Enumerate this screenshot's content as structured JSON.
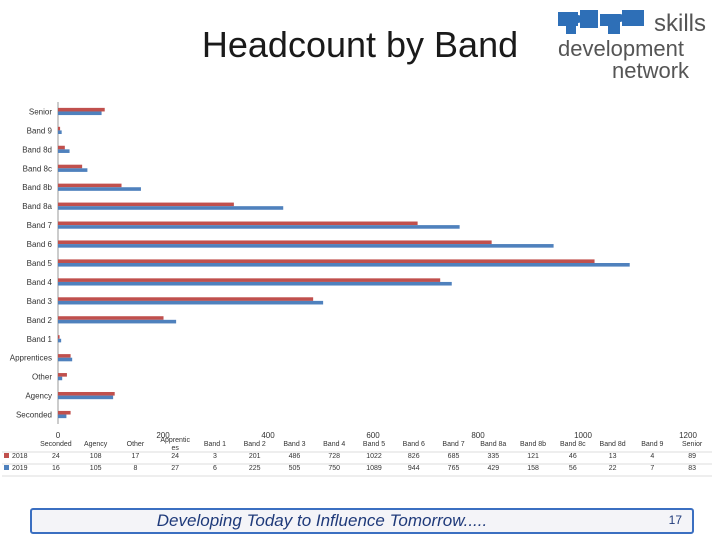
{
  "slide": {
    "title": "Headcount by Band",
    "footer_text": "Developing Today to Influence Tomorrow.....",
    "page_number": "17"
  },
  "logo": {
    "line1": "skills",
    "line2": "development",
    "line3": "network"
  },
  "chart_data": {
    "type": "bar",
    "orientation": "horizontal",
    "categories": [
      "Seconded",
      "Agency",
      "Other",
      "Apprentices",
      "Band 1",
      "Band 2",
      "Band 3",
      "Band 4",
      "Band 5",
      "Band 6",
      "Band 7",
      "Band 8a",
      "Band 8b",
      "Band 8c",
      "Band 8d",
      "Band 9",
      "Senior"
    ],
    "table_header_labels": [
      "Seconded",
      "Agency",
      "Other",
      "Apprentic es",
      "Band 1",
      "Band 2",
      "Band 3",
      "Band 4",
      "Band 5",
      "Band 6",
      "Band 7",
      "Band 8a",
      "Band 8b",
      "Band 8c",
      "Band 8d",
      "Band 9",
      "Senior"
    ],
    "series": [
      {
        "name": "2018",
        "color": "#c0504d",
        "values": [
          24,
          108,
          17,
          24,
          3,
          201,
          486,
          728,
          1022,
          826,
          685,
          335,
          121,
          46,
          13,
          4,
          89
        ]
      },
      {
        "name": "2019",
        "color": "#4f81bd",
        "values": [
          16,
          105,
          8,
          27,
          6,
          225,
          505,
          750,
          1089,
          944,
          765,
          429,
          158,
          56,
          22,
          7,
          83
        ]
      }
    ],
    "xlim": [
      0,
      1200
    ],
    "xticks": [
      0,
      200,
      400,
      600,
      800,
      1000,
      1200
    ],
    "data_table": true,
    "grid": false
  }
}
